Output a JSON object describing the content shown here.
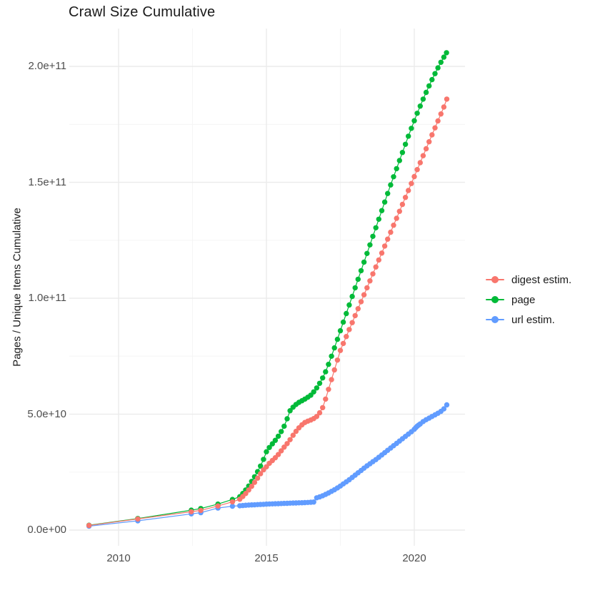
{
  "title": "Crawl Size Cumulative",
  "axes": {
    "y_label": "Pages / Unique Items Cumulative",
    "y_ticks": [
      {
        "label": "0.0e+00",
        "value": 0
      },
      {
        "label": "5.0e+10",
        "value": 50
      },
      {
        "label": "1.0e+11",
        "value": 100
      },
      {
        "label": "1.5e+11",
        "value": 150
      },
      {
        "label": "2.0e+11",
        "value": 200
      }
    ],
    "y_minor_values": [
      25,
      75,
      125,
      175
    ],
    "x_ticks": [
      {
        "label": "2010",
        "value": 2010
      },
      {
        "label": "2015",
        "value": 2015
      },
      {
        "label": "2020",
        "value": 2020
      }
    ],
    "x_minor_values": [
      2012.5,
      2017.5
    ]
  },
  "legend": {
    "items": [
      {
        "label": "digest estim.",
        "color": "#F8766D"
      },
      {
        "label": "page",
        "color": "#00BA38"
      },
      {
        "label": "url estim.",
        "color": "#619CFF"
      }
    ]
  },
  "colors": {
    "grid_major": "#EBEBEB",
    "grid_minor": "#F5F5F5",
    "axis_text": "#4D4D4D",
    "title_text": "#1A1A1A",
    "background": "#FFFFFF"
  },
  "chart_data": {
    "type": "line",
    "title": "Crawl Size Cumulative",
    "xlabel": "",
    "ylabel": "Pages / Unique Items Cumulative",
    "x_range": [
      2008.4,
      2021.75
    ],
    "y_range_billions": [
      -11,
      216
    ],
    "unit": "cumulative count in billions (1e9); y tick labels shown in scientific notation",
    "grid": "on",
    "legend_position": "right",
    "point_style": "dot-with-line",
    "series": [
      {
        "name": "digest estim.",
        "color": "#F8766D",
        "points": [
          [
            2009.0,
            2.0
          ],
          [
            2010.65,
            4.8
          ],
          [
            2012.46,
            7.9
          ],
          [
            2012.78,
            8.5
          ],
          [
            2013.36,
            10.4
          ],
          [
            2013.85,
            12.2
          ],
          [
            2014.1,
            13.3
          ],
          [
            2014.2,
            14.5
          ],
          [
            2014.3,
            15.8
          ],
          [
            2014.4,
            17.3
          ],
          [
            2014.5,
            18.9
          ],
          [
            2014.6,
            20.6
          ],
          [
            2014.7,
            22.4
          ],
          [
            2014.8,
            24.3
          ],
          [
            2014.9,
            26.0
          ],
          [
            2015.0,
            27.3
          ],
          [
            2015.1,
            28.8
          ],
          [
            2015.2,
            30.0
          ],
          [
            2015.3,
            31.2
          ],
          [
            2015.4,
            32.6
          ],
          [
            2015.5,
            34.2
          ],
          [
            2015.6,
            35.8
          ],
          [
            2015.7,
            37.3
          ],
          [
            2015.8,
            39.0
          ],
          [
            2015.9,
            40.9
          ],
          [
            2016.0,
            42.6
          ],
          [
            2016.1,
            44.1
          ],
          [
            2016.2,
            45.4
          ],
          [
            2016.3,
            46.4
          ],
          [
            2016.4,
            47.0
          ],
          [
            2016.5,
            47.5
          ],
          [
            2016.6,
            48.1
          ],
          [
            2016.7,
            49.0
          ],
          [
            2016.8,
            50.6
          ],
          [
            2016.9,
            52.8
          ],
          [
            2017.0,
            56.5
          ],
          [
            2017.1,
            60.7
          ],
          [
            2017.2,
            64.9
          ],
          [
            2017.3,
            69.1
          ],
          [
            2017.4,
            73.3
          ],
          [
            2017.5,
            77.5
          ],
          [
            2017.6,
            80.5
          ],
          [
            2017.7,
            83.5
          ],
          [
            2017.8,
            86.5
          ],
          [
            2017.9,
            89.5
          ],
          [
            2018.0,
            92.5
          ],
          [
            2018.1,
            95.5
          ],
          [
            2018.2,
            98.5
          ],
          [
            2018.3,
            101.5
          ],
          [
            2018.4,
            104.5
          ],
          [
            2018.5,
            107.5
          ],
          [
            2018.6,
            110.5
          ],
          [
            2018.7,
            113.5
          ],
          [
            2018.8,
            116.5
          ],
          [
            2018.9,
            119.5
          ],
          [
            2019.0,
            122.5
          ],
          [
            2019.1,
            125.5
          ],
          [
            2019.2,
            128.5
          ],
          [
            2019.3,
            131.5
          ],
          [
            2019.4,
            134.5
          ],
          [
            2019.5,
            137.5
          ],
          [
            2019.6,
            140.5
          ],
          [
            2019.7,
            143.5
          ],
          [
            2019.8,
            146.5
          ],
          [
            2019.9,
            149.5
          ],
          [
            2020.0,
            152.5
          ],
          [
            2020.1,
            155.5
          ],
          [
            2020.2,
            158.5
          ],
          [
            2020.3,
            161.5
          ],
          [
            2020.4,
            164.5
          ],
          [
            2020.5,
            167.5
          ],
          [
            2020.6,
            170.5
          ],
          [
            2020.7,
            173.5
          ],
          [
            2020.8,
            176.5
          ],
          [
            2020.9,
            179.5
          ],
          [
            2021.0,
            182.5
          ],
          [
            2021.1,
            185.9
          ]
        ]
      },
      {
        "name": "page",
        "color": "#00BA38",
        "points": [
          [
            2009.0,
            2.1
          ],
          [
            2010.65,
            5.0
          ],
          [
            2012.46,
            8.6
          ],
          [
            2012.78,
            9.3
          ],
          [
            2013.36,
            11.2
          ],
          [
            2013.85,
            13.2
          ],
          [
            2014.1,
            14.4
          ],
          [
            2014.2,
            15.8
          ],
          [
            2014.3,
            17.3
          ],
          [
            2014.4,
            19.0
          ],
          [
            2014.5,
            21.0
          ],
          [
            2014.6,
            23.0
          ],
          [
            2014.7,
            25.2
          ],
          [
            2014.8,
            27.6
          ],
          [
            2014.9,
            30.5
          ],
          [
            2015.0,
            33.8
          ],
          [
            2015.1,
            35.6
          ],
          [
            2015.2,
            37.2
          ],
          [
            2015.3,
            38.7
          ],
          [
            2015.4,
            40.5
          ],
          [
            2015.5,
            42.5
          ],
          [
            2015.6,
            44.8
          ],
          [
            2015.7,
            48.0
          ],
          [
            2015.8,
            51.5
          ],
          [
            2015.9,
            53.0
          ],
          [
            2016.0,
            54.2
          ],
          [
            2016.1,
            55.1
          ],
          [
            2016.2,
            55.8
          ],
          [
            2016.3,
            56.5
          ],
          [
            2016.4,
            57.3
          ],
          [
            2016.5,
            58.2
          ],
          [
            2016.6,
            59.6
          ],
          [
            2016.7,
            61.3
          ],
          [
            2016.8,
            63.3
          ],
          [
            2016.9,
            65.6
          ],
          [
            2017.0,
            68.3
          ],
          [
            2017.1,
            71.5
          ],
          [
            2017.2,
            75.0
          ],
          [
            2017.3,
            78.6
          ],
          [
            2017.4,
            82.3
          ],
          [
            2017.5,
            86.0
          ],
          [
            2017.6,
            89.7
          ],
          [
            2017.7,
            93.4
          ],
          [
            2017.8,
            97.1
          ],
          [
            2017.9,
            100.8
          ],
          [
            2018.0,
            104.5
          ],
          [
            2018.1,
            108.2
          ],
          [
            2018.2,
            111.9
          ],
          [
            2018.3,
            115.6
          ],
          [
            2018.4,
            119.3
          ],
          [
            2018.5,
            123.0
          ],
          [
            2018.6,
            126.7
          ],
          [
            2018.7,
            130.4
          ],
          [
            2018.8,
            134.1
          ],
          [
            2018.9,
            137.8
          ],
          [
            2019.0,
            141.5
          ],
          [
            2019.1,
            145.2
          ],
          [
            2019.2,
            148.9
          ],
          [
            2019.3,
            152.4
          ],
          [
            2019.4,
            155.9
          ],
          [
            2019.5,
            159.4
          ],
          [
            2019.6,
            162.9
          ],
          [
            2019.7,
            166.4
          ],
          [
            2019.8,
            169.9
          ],
          [
            2019.9,
            173.3
          ],
          [
            2020.0,
            176.6
          ],
          [
            2020.1,
            179.8
          ],
          [
            2020.2,
            182.9
          ],
          [
            2020.3,
            185.9
          ],
          [
            2020.4,
            188.8
          ],
          [
            2020.5,
            191.6
          ],
          [
            2020.6,
            194.3
          ],
          [
            2020.7,
            196.9
          ],
          [
            2020.8,
            199.4
          ],
          [
            2020.9,
            201.8
          ],
          [
            2021.0,
            204.0
          ],
          [
            2021.09,
            205.9
          ]
        ]
      },
      {
        "name": "url estim.",
        "color": "#619CFF",
        "points": [
          [
            2009.0,
            1.7
          ],
          [
            2010.65,
            4.0
          ],
          [
            2012.46,
            7.0
          ],
          [
            2012.78,
            7.5
          ],
          [
            2013.36,
            9.5
          ],
          [
            2013.85,
            10.3
          ],
          [
            2014.1,
            10.5
          ],
          [
            2014.2,
            10.6
          ],
          [
            2014.3,
            10.7
          ],
          [
            2014.4,
            10.8
          ],
          [
            2014.5,
            10.85
          ],
          [
            2014.6,
            10.9
          ],
          [
            2014.7,
            11.0
          ],
          [
            2014.8,
            11.05
          ],
          [
            2014.9,
            11.1
          ],
          [
            2015.0,
            11.2
          ],
          [
            2015.1,
            11.25
          ],
          [
            2015.2,
            11.3
          ],
          [
            2015.3,
            11.35
          ],
          [
            2015.4,
            11.4
          ],
          [
            2015.5,
            11.45
          ],
          [
            2015.6,
            11.5
          ],
          [
            2015.7,
            11.55
          ],
          [
            2015.8,
            11.6
          ],
          [
            2015.9,
            11.65
          ],
          [
            2016.0,
            11.7
          ],
          [
            2016.1,
            11.75
          ],
          [
            2016.2,
            11.8
          ],
          [
            2016.3,
            11.85
          ],
          [
            2016.4,
            11.9
          ],
          [
            2016.5,
            12.0
          ],
          [
            2016.6,
            12.1
          ],
          [
            2016.7,
            13.9
          ],
          [
            2016.8,
            14.3
          ],
          [
            2016.9,
            14.8
          ],
          [
            2017.0,
            15.4
          ],
          [
            2017.1,
            16.0
          ],
          [
            2017.2,
            16.7
          ],
          [
            2017.3,
            17.4
          ],
          [
            2017.4,
            18.2
          ],
          [
            2017.5,
            19.0
          ],
          [
            2017.6,
            19.9
          ],
          [
            2017.7,
            20.8
          ],
          [
            2017.8,
            21.7
          ],
          [
            2017.9,
            22.7
          ],
          [
            2018.0,
            23.7
          ],
          [
            2018.1,
            24.7
          ],
          [
            2018.2,
            25.7
          ],
          [
            2018.3,
            26.7
          ],
          [
            2018.4,
            27.7
          ],
          [
            2018.5,
            28.6
          ],
          [
            2018.6,
            29.5
          ],
          [
            2018.7,
            30.4
          ],
          [
            2018.8,
            31.4
          ],
          [
            2018.9,
            32.4
          ],
          [
            2019.0,
            33.4
          ],
          [
            2019.1,
            34.4
          ],
          [
            2019.2,
            35.4
          ],
          [
            2019.3,
            36.4
          ],
          [
            2019.4,
            37.4
          ],
          [
            2019.5,
            38.4
          ],
          [
            2019.6,
            39.4
          ],
          [
            2019.7,
            40.4
          ],
          [
            2019.8,
            41.4
          ],
          [
            2019.9,
            42.4
          ],
          [
            2020.0,
            43.5
          ],
          [
            2020.05,
            44.2
          ],
          [
            2020.1,
            44.8
          ],
          [
            2020.15,
            45.3
          ],
          [
            2020.2,
            45.8
          ],
          [
            2020.3,
            46.8
          ],
          [
            2020.4,
            47.6
          ],
          [
            2020.5,
            48.3
          ],
          [
            2020.6,
            49.0
          ],
          [
            2020.7,
            49.7
          ],
          [
            2020.8,
            50.4
          ],
          [
            2020.9,
            51.2
          ],
          [
            2021.0,
            52.3
          ],
          [
            2021.1,
            54.0
          ]
        ]
      }
    ]
  }
}
